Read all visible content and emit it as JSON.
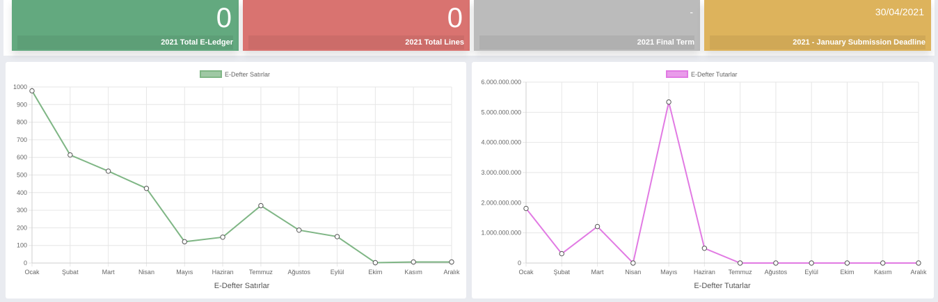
{
  "stats": [
    {
      "value": "0",
      "label": "2021 Total E-Ledger",
      "color": "#63a97f"
    },
    {
      "value": "0",
      "label": "2021 Total Lines",
      "color": "#d97370"
    },
    {
      "value": "-",
      "label": "2021 Final Term",
      "color": "#bbbbbb"
    },
    {
      "value": "30/04/2021",
      "label": "2021 - January Submission Deadline",
      "color": "#ddb35c"
    }
  ],
  "chart_data": [
    {
      "type": "line",
      "legend": "E-Defter Satırlar",
      "xlabel": "E-Defter Satırlar",
      "color": "#7fb685",
      "categories": [
        "Ocak",
        "Şubat",
        "Mart",
        "Nisan",
        "Mayıs",
        "Haziran",
        "Temmuz",
        "Ağustos",
        "Eylül",
        "Ekim",
        "Kasım",
        "Aralık"
      ],
      "values": [
        978,
        614,
        522,
        424,
        121,
        147,
        326,
        187,
        150,
        2,
        6,
        6
      ],
      "ylim": [
        0,
        1000
      ],
      "yticks": [
        "0",
        "100",
        "200",
        "300",
        "400",
        "500",
        "600",
        "700",
        "800",
        "900",
        "1000"
      ]
    },
    {
      "type": "line",
      "legend": "E-Defter Tutarlar",
      "xlabel": "E-Defter Tutarlar",
      "color": "#e17ae3",
      "categories": [
        "Ocak",
        "Şubat",
        "Mart",
        "Nisan",
        "Mayıs",
        "Haziran",
        "Temmuz",
        "Ağustos",
        "Eylül",
        "Ekim",
        "Kasım",
        "Aralık"
      ],
      "values": [
        1810000000,
        310000000,
        1210000000,
        0,
        5340000000,
        490000000,
        0,
        0,
        0,
        0,
        0,
        0
      ],
      "ylim": [
        0,
        6000000000
      ],
      "yticks": [
        "0",
        "1.000.000.000",
        "2.000.000.000",
        "3.000.000.000",
        "4.000.000.000",
        "5.000.000.000",
        "6.000.000.000"
      ]
    }
  ]
}
